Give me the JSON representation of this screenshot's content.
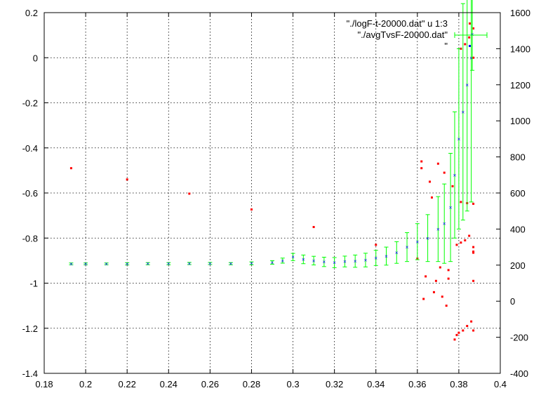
{
  "chart_data": {
    "type": "scatter",
    "title": "",
    "xlabel": "",
    "ylabel": "",
    "y2label": "",
    "xlim": [
      0.18,
      0.4
    ],
    "ylim": [
      -1.4,
      0.2
    ],
    "y2lim": [
      -400,
      1600
    ],
    "grid": true,
    "legend_position": "top-right",
    "x_ticks": [
      0.18,
      0.2,
      0.22,
      0.24,
      0.26,
      0.28,
      0.3,
      0.32,
      0.34,
      0.36,
      0.38,
      0.4
    ],
    "x_tick_labels": [
      "0.18",
      "0.2",
      "0.22",
      "0.24",
      "0.26",
      "0.28",
      "0.3",
      "0.32",
      "0.34",
      "0.36",
      "0.38",
      "0.4"
    ],
    "y_ticks": [
      -1.4,
      -1.2,
      -1.0,
      -0.8,
      -0.6,
      -0.4,
      -0.2,
      0,
      0.2
    ],
    "y_tick_labels": [
      "-1.4",
      "-1.2",
      "-1",
      "-0.8",
      "-0.6",
      "-0.4",
      "-0.2",
      "0",
      "0.2"
    ],
    "y2_ticks": [
      -400,
      -200,
      0,
      200,
      400,
      600,
      800,
      1000,
      1200,
      1400,
      1600
    ],
    "y2_tick_labels": [
      "-400",
      "-200",
      "0",
      "200",
      "400",
      "600",
      "800",
      "1000",
      "1200",
      "1400",
      "1600"
    ],
    "legend": [
      {
        "label": "\"./logF-t-20000.dat\" u 1:3",
        "color": "#ff0000",
        "style": "points"
      },
      {
        "label": "\"./avgTvsF-20000.dat\"",
        "color": "#00ff00",
        "style": "errorbars"
      },
      {
        "label": "\"",
        "color": "#0000ff",
        "style": "points"
      }
    ],
    "series": [
      {
        "name": "\"./logF-t-20000.dat\" u 1:3",
        "axis": "y",
        "color": "#ff0000",
        "style": "points",
        "points": [
          [
            0.193,
            -0.49
          ],
          [
            0.22,
            -0.54
          ],
          [
            0.25,
            -0.603
          ],
          [
            0.28,
            -0.673
          ],
          [
            0.31,
            -0.751
          ],
          [
            0.34,
            -0.83
          ],
          [
            0.36,
            -0.891
          ],
          [
            0.375,
            -0.942
          ],
          [
            0.387,
            -0.99
          ],
          [
            0.362,
            -0.46
          ],
          [
            0.362,
            -0.49
          ],
          [
            0.363,
            -1.07
          ],
          [
            0.364,
            -0.97
          ],
          [
            0.366,
            -0.55
          ],
          [
            0.367,
            -0.62
          ],
          [
            0.368,
            -1.04
          ],
          [
            0.369,
            -0.99
          ],
          [
            0.37,
            -0.47
          ],
          [
            0.371,
            -0.93
          ],
          [
            0.372,
            -1.06
          ],
          [
            0.373,
            -0.51
          ],
          [
            0.374,
            -1.1
          ],
          [
            0.375,
            -0.98
          ],
          [
            0.377,
            -0.57
          ],
          [
            0.378,
            -1.25
          ],
          [
            0.379,
            -1.23
          ],
          [
            0.38,
            -1.22
          ],
          [
            0.382,
            -1.21
          ],
          [
            0.384,
            -1.19
          ],
          [
            0.386,
            -1.17
          ],
          [
            0.387,
            -1.21
          ],
          [
            0.379,
            -0.83
          ],
          [
            0.381,
            -0.82
          ],
          [
            0.383,
            -0.81
          ],
          [
            0.385,
            -0.79
          ],
          [
            0.387,
            -0.84
          ],
          [
            0.387,
            -0.86
          ],
          [
            0.387,
            -0.865
          ],
          [
            0.381,
            0.04
          ],
          [
            0.383,
            0.06
          ],
          [
            0.385,
            0.09
          ],
          [
            0.387,
            0.0
          ],
          [
            0.387,
            0.13
          ],
          [
            0.381,
            -0.64
          ],
          [
            0.384,
            -0.645
          ],
          [
            0.387,
            -0.648
          ]
        ]
      },
      {
        "name": "\"./avgTvsF-20000.dat\"",
        "axis": "y2",
        "color": "#00ff00",
        "marker_color": "#0000ff",
        "style": "errorbars",
        "points": [
          [
            0.193,
            207,
            5
          ],
          [
            0.2,
            207,
            5
          ],
          [
            0.21,
            207,
            5
          ],
          [
            0.22,
            207,
            6
          ],
          [
            0.23,
            208,
            6
          ],
          [
            0.24,
            208,
            6
          ],
          [
            0.25,
            209,
            6
          ],
          [
            0.26,
            209,
            6
          ],
          [
            0.27,
            208,
            6
          ],
          [
            0.28,
            210,
            8
          ],
          [
            0.29,
            215,
            10
          ],
          [
            0.295,
            225,
            14
          ],
          [
            0.3,
            245,
            20
          ],
          [
            0.305,
            232,
            24
          ],
          [
            0.31,
            225,
            24
          ],
          [
            0.315,
            218,
            26
          ],
          [
            0.32,
            214,
            28
          ],
          [
            0.325,
            220,
            30
          ],
          [
            0.33,
            222,
            34
          ],
          [
            0.335,
            228,
            38
          ],
          [
            0.34,
            240,
            42
          ],
          [
            0.345,
            250,
            50
          ],
          [
            0.35,
            270,
            60
          ],
          [
            0.355,
            300,
            80
          ],
          [
            0.36,
            330,
            100
          ],
          [
            0.365,
            350,
            130
          ],
          [
            0.37,
            400,
            180
          ],
          [
            0.373,
            430,
            220
          ],
          [
            0.376,
            520,
            300
          ],
          [
            0.378,
            700,
            350
          ],
          [
            0.38,
            900,
            500
          ],
          [
            0.382,
            1050,
            600
          ],
          [
            0.384,
            1200,
            700
          ],
          [
            0.386,
            1350,
            800
          ],
          [
            0.3865,
            1480,
            200
          ]
        ]
      }
    ]
  }
}
